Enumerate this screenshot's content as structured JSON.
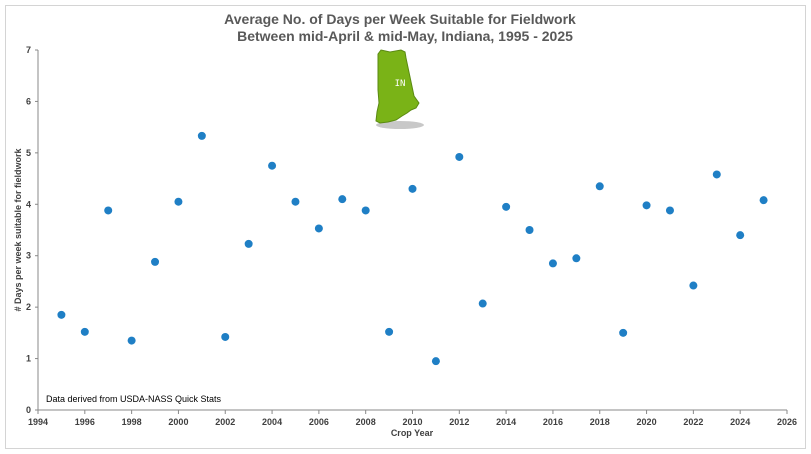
{
  "chart_data": {
    "type": "scatter",
    "title": "Average No. of Days per Week Suitable for Fieldwork",
    "subtitle": "Between mid-April & mid-May, Indiana, 1995 - 2025",
    "xlabel": "Crop Year",
    "ylabel": "# Days per week suitable for fieldwork",
    "xlim": [
      1994,
      2026
    ],
    "ylim": [
      0,
      7
    ],
    "xticks": [
      1994,
      1996,
      1998,
      2000,
      2002,
      2004,
      2006,
      2008,
      2010,
      2012,
      2014,
      2016,
      2018,
      2020,
      2022,
      2024,
      2026
    ],
    "yticks": [
      0,
      1,
      2,
      3,
      4,
      5,
      6,
      7
    ],
    "grid": false,
    "marker_color": "#1f7fc5",
    "annotation": "Data derived from USDA-NASS Quick Stats",
    "inset_label": "IN",
    "inset_color": "#7ab317",
    "points": [
      {
        "x": 1995,
        "y": 1.85
      },
      {
        "x": 1996,
        "y": 1.52
      },
      {
        "x": 1997,
        "y": 3.88
      },
      {
        "x": 1998,
        "y": 1.35
      },
      {
        "x": 1999,
        "y": 2.88
      },
      {
        "x": 2000,
        "y": 4.05
      },
      {
        "x": 2001,
        "y": 5.33
      },
      {
        "x": 2002,
        "y": 1.42
      },
      {
        "x": 2003,
        "y": 3.23
      },
      {
        "x": 2004,
        "y": 4.75
      },
      {
        "x": 2005,
        "y": 4.05
      },
      {
        "x": 2006,
        "y": 3.53
      },
      {
        "x": 2007,
        "y": 4.1
      },
      {
        "x": 2008,
        "y": 3.88
      },
      {
        "x": 2009,
        "y": 1.52
      },
      {
        "x": 2010,
        "y": 4.3
      },
      {
        "x": 2011,
        "y": 0.95
      },
      {
        "x": 2012,
        "y": 4.92
      },
      {
        "x": 2013,
        "y": 2.07
      },
      {
        "x": 2014,
        "y": 3.95
      },
      {
        "x": 2015,
        "y": 3.5
      },
      {
        "x": 2016,
        "y": 2.85
      },
      {
        "x": 2017,
        "y": 2.95
      },
      {
        "x": 2018,
        "y": 4.35
      },
      {
        "x": 2019,
        "y": 1.5
      },
      {
        "x": 2020,
        "y": 3.98
      },
      {
        "x": 2021,
        "y": 3.88
      },
      {
        "x": 2022,
        "y": 2.42
      },
      {
        "x": 2023,
        "y": 4.58
      },
      {
        "x": 2024,
        "y": 3.4
      },
      {
        "x": 2025,
        "y": 4.08
      }
    ]
  }
}
